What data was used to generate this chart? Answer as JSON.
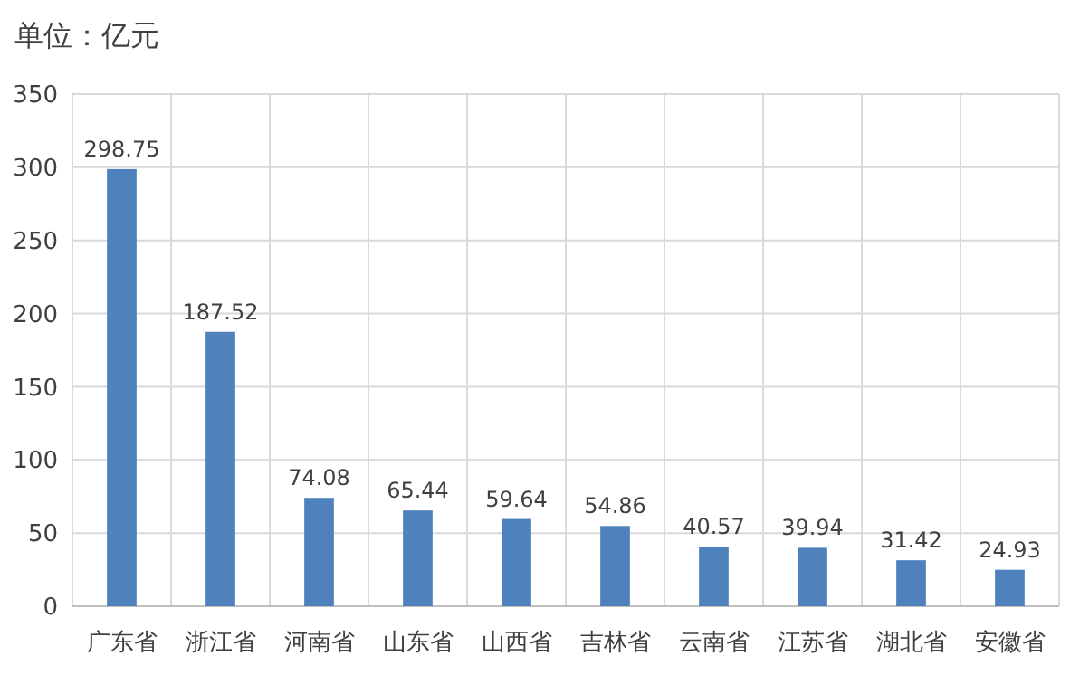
{
  "chart_data": {
    "type": "bar",
    "title": "单位：亿元",
    "categories": [
      "广东省",
      "浙江省",
      "河南省",
      "山东省",
      "山西省",
      "吉林省",
      "云南省",
      "江苏省",
      "湖北省",
      "安徽省"
    ],
    "values": [
      298.75,
      187.52,
      74.08,
      65.44,
      59.64,
      54.86,
      40.57,
      39.94,
      31.42,
      24.93
    ],
    "color": "#4f81bd",
    "ylim": [
      0,
      350
    ],
    "yticks": [
      0,
      50,
      100,
      150,
      200,
      250,
      300,
      350
    ],
    "grid": true,
    "data_labels": true
  }
}
